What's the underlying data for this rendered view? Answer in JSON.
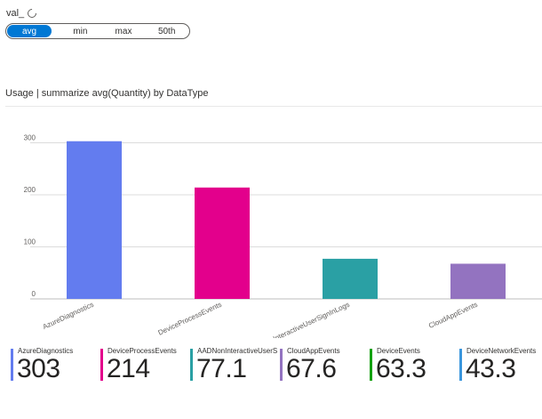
{
  "parameter": {
    "label": "val_",
    "options": [
      "avg",
      "min",
      "max",
      "50th"
    ],
    "selected": "avg"
  },
  "chart_title": "Usage | summarize avg(Quantity) by DataType",
  "chart_data": {
    "type": "bar",
    "title": "Usage | summarize avg(Quantity) by DataType",
    "categories": [
      "AzureDiagnostics",
      "DeviceProcessEvents",
      "AADNonInteractiveUserSignInLogs",
      "CloudAppEvents"
    ],
    "values": [
      303,
      214,
      77.1,
      67.6
    ],
    "colors": [
      "#637cef",
      "#e3008c",
      "#2aa0a4",
      "#9373c0"
    ],
    "yticks": [
      0,
      100,
      200,
      300
    ],
    "ylim": [
      0,
      330
    ],
    "xlabel": "",
    "ylabel": "",
    "grid": true
  },
  "tiles": [
    {
      "name": "AzureDiagnostics",
      "value": "303",
      "color": "#637cef"
    },
    {
      "name": "DeviceProcessEvents",
      "value": "214",
      "color": "#e3008c"
    },
    {
      "name": "AADNonInteractiveUserSi...",
      "value": "77.1",
      "color": "#2aa0a4"
    },
    {
      "name": "CloudAppEvents",
      "value": "67.6",
      "color": "#9373c0"
    },
    {
      "name": "DeviceEvents",
      "value": "63.3",
      "color": "#13a10e"
    },
    {
      "name": "DeviceNetworkEvents",
      "value": "43.3",
      "color": "#3a96dd"
    }
  ]
}
